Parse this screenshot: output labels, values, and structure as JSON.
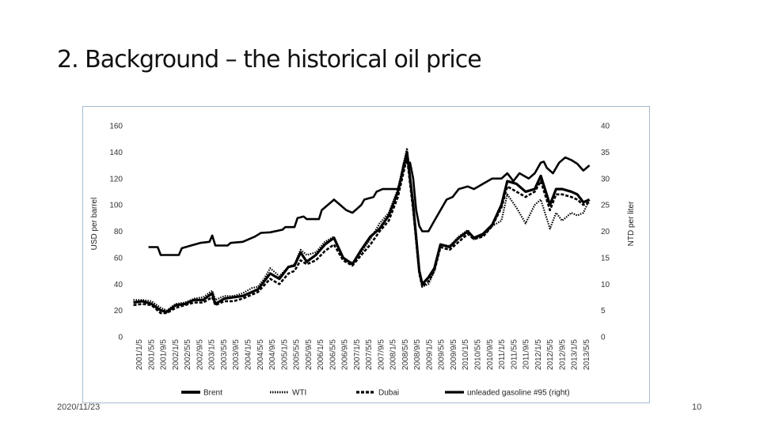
{
  "slide": {
    "title": "2. Background – the historical oil price",
    "date": "2020/11/23",
    "page_number": "10"
  },
  "chart_data": {
    "type": "line",
    "ylabel": "USD per barrel",
    "y2label": "NTD per liter",
    "ylim": [
      0,
      160
    ],
    "y_ticks": [
      0,
      20,
      40,
      60,
      80,
      100,
      120,
      140,
      160
    ],
    "y2lim": [
      0,
      40
    ],
    "y2_ticks": [
      0,
      5,
      10,
      15,
      20,
      25,
      30,
      35,
      40
    ],
    "x_tick_labels": [
      "2001/1/5",
      "2001/5/5",
      "2001/9/5",
      "2002/1/5",
      "2002/5/5",
      "2002/9/5",
      "2003/1/5",
      "2003/5/5",
      "2003/9/5",
      "2004/1/5",
      "2004/5/5",
      "2004/9/5",
      "2005/1/5",
      "2005/5/5",
      "2005/9/5",
      "2006/1/5",
      "2006/5/5",
      "2006/9/5",
      "2007/1/5",
      "2007/5/5",
      "2007/9/5",
      "2008/1/5",
      "2008/5/5",
      "2008/9/5",
      "2009/1/5",
      "2009/5/5",
      "2009/9/5",
      "2010/1/5",
      "2010/5/5",
      "2010/9/5",
      "2011/1/5",
      "2011/5/5",
      "2011/9/5",
      "2012/1/5",
      "2012/5/5",
      "2012/9/5",
      "2013/1/5",
      "2013/5/5"
    ],
    "grid": false,
    "legend_position": "bottom",
    "line_color": "#000000",
    "series": [
      {
        "name": "Brent",
        "axis": "left",
        "style": "solid",
        "x": [
          "2001-01",
          "2001-04",
          "2001-07",
          "2001-10",
          "2001-12",
          "2002-03",
          "2002-06",
          "2002-09",
          "2002-12",
          "2003-03",
          "2003-04",
          "2003-07",
          "2003-10",
          "2004-01",
          "2004-04",
          "2004-06",
          "2004-08",
          "2004-10",
          "2005-01",
          "2005-04",
          "2005-06",
          "2005-08",
          "2005-10",
          "2006-01",
          "2006-04",
          "2006-07",
          "2006-10",
          "2007-01",
          "2007-04",
          "2007-07",
          "2007-10",
          "2008-01",
          "2008-04",
          "2008-07",
          "2008-09",
          "2008-11",
          "2008-12",
          "2009-02",
          "2009-04",
          "2009-06",
          "2009-09",
          "2009-12",
          "2010-03",
          "2010-05",
          "2010-08",
          "2010-11",
          "2011-02",
          "2011-04",
          "2011-07",
          "2011-10",
          "2012-01",
          "2012-03",
          "2012-06",
          "2012-08",
          "2012-10",
          "2013-01",
          "2013-03",
          "2013-05",
          "2013-07"
        ],
        "y": [
          26,
          27,
          25,
          20,
          19,
          24,
          25,
          28,
          28,
          33,
          25,
          29,
          30,
          31,
          34,
          36,
          42,
          48,
          44,
          53,
          54,
          64,
          57,
          62,
          70,
          75,
          60,
          55,
          66,
          76,
          82,
          92,
          110,
          140,
          100,
          50,
          40,
          45,
          52,
          70,
          68,
          75,
          80,
          75,
          78,
          85,
          100,
          118,
          116,
          110,
          112,
          122,
          100,
          112,
          112,
          110,
          108,
          102,
          104
        ]
      },
      {
        "name": "WTI",
        "axis": "left",
        "style": "dotted",
        "x": [
          "2001-01",
          "2001-04",
          "2001-07",
          "2001-10",
          "2001-12",
          "2002-03",
          "2002-06",
          "2002-09",
          "2002-12",
          "2003-03",
          "2003-04",
          "2003-07",
          "2003-10",
          "2004-01",
          "2004-04",
          "2004-06",
          "2004-08",
          "2004-10",
          "2005-01",
          "2005-04",
          "2005-06",
          "2005-08",
          "2005-10",
          "2006-01",
          "2006-04",
          "2006-07",
          "2006-10",
          "2007-01",
          "2007-04",
          "2007-07",
          "2007-10",
          "2008-01",
          "2008-04",
          "2008-07",
          "2008-09",
          "2008-11",
          "2008-12",
          "2009-02",
          "2009-04",
          "2009-06",
          "2009-09",
          "2009-12",
          "2010-03",
          "2010-05",
          "2010-08",
          "2010-11",
          "2011-02",
          "2011-04",
          "2011-07",
          "2011-10",
          "2012-01",
          "2012-03",
          "2012-06",
          "2012-08",
          "2012-10",
          "2013-01",
          "2013-03",
          "2013-05",
          "2013-07"
        ],
        "y": [
          28,
          28,
          27,
          22,
          20,
          25,
          26,
          29,
          30,
          35,
          28,
          31,
          31,
          33,
          37,
          38,
          44,
          52,
          46,
          53,
          55,
          66,
          62,
          64,
          72,
          76,
          60,
          56,
          64,
          74,
          86,
          94,
          112,
          143,
          102,
          52,
          38,
          40,
          50,
          70,
          69,
          76,
          81,
          74,
          77,
          84,
          88,
          108,
          98,
          86,
          100,
          104,
          82,
          94,
          88,
          94,
          92,
          94,
          104
        ]
      },
      {
        "name": "Dubai",
        "axis": "left",
        "style": "dashed",
        "x": [
          "2001-01",
          "2001-04",
          "2001-07",
          "2001-10",
          "2001-12",
          "2002-03",
          "2002-06",
          "2002-09",
          "2002-12",
          "2003-03",
          "2003-04",
          "2003-07",
          "2003-10",
          "2004-01",
          "2004-04",
          "2004-06",
          "2004-08",
          "2004-10",
          "2005-01",
          "2005-04",
          "2005-06",
          "2005-08",
          "2005-10",
          "2006-01",
          "2006-04",
          "2006-07",
          "2006-10",
          "2007-01",
          "2007-04",
          "2007-07",
          "2007-10",
          "2008-01",
          "2008-04",
          "2008-07",
          "2008-09",
          "2008-11",
          "2008-12",
          "2009-02",
          "2009-04",
          "2009-06",
          "2009-09",
          "2009-12",
          "2010-03",
          "2010-05",
          "2010-08",
          "2010-11",
          "2011-02",
          "2011-04",
          "2011-07",
          "2011-10",
          "2012-01",
          "2012-03",
          "2012-06",
          "2012-08",
          "2012-10",
          "2013-01",
          "2013-03",
          "2013-05",
          "2013-07"
        ],
        "y": [
          24,
          25,
          24,
          18,
          18,
          22,
          24,
          26,
          26,
          30,
          24,
          27,
          27,
          29,
          32,
          34,
          39,
          44,
          40,
          48,
          50,
          58,
          55,
          58,
          65,
          70,
          58,
          54,
          62,
          70,
          80,
          88,
          106,
          136,
          96,
          48,
          38,
          42,
          50,
          68,
          66,
          72,
          78,
          74,
          76,
          84,
          98,
          114,
          110,
          106,
          110,
          118,
          96,
          108,
          108,
          106,
          104,
          100,
          102
        ]
      },
      {
        "name": "unleaded gasoline #95 (right)",
        "axis": "right",
        "style": "solid-thick",
        "x": [
          "2001-06",
          "2001-09",
          "2001-10",
          "2002-04",
          "2002-05",
          "2002-08",
          "2002-11",
          "2003-02",
          "2003-03",
          "2003-04",
          "2003-08",
          "2003-09",
          "2004-01",
          "2004-05",
          "2004-07",
          "2004-10",
          "2005-02",
          "2005-03",
          "2005-06",
          "2005-07",
          "2005-09",
          "2005-10",
          "2006-02",
          "2006-03",
          "2006-06",
          "2006-07",
          "2006-09",
          "2006-11",
          "2007-01",
          "2007-02",
          "2007-04",
          "2007-05",
          "2007-08",
          "2007-09",
          "2007-11",
          "2008-01",
          "2008-04",
          "2008-05",
          "2008-06",
          "2008-08",
          "2008-09",
          "2008-10",
          "2008-11",
          "2008-12",
          "2009-02",
          "2009-04",
          "2009-06",
          "2009-08",
          "2009-10",
          "2009-12",
          "2010-03",
          "2010-05",
          "2010-08",
          "2010-11",
          "2011-02",
          "2011-04",
          "2011-06",
          "2011-08",
          "2011-11",
          "2012-01",
          "2012-03",
          "2012-04",
          "2012-05",
          "2012-07",
          "2012-09",
          "2012-11",
          "2013-01",
          "2013-03",
          "2013-05",
          "2013-07"
        ],
        "y": [
          17,
          17,
          15.5,
          15.5,
          16.8,
          17.3,
          17.8,
          18,
          19.2,
          17.3,
          17.3,
          17.8,
          18,
          19,
          19.7,
          19.8,
          20.3,
          20.8,
          20.8,
          22.5,
          22.8,
          22.3,
          22.3,
          24,
          25.5,
          26,
          25,
          24,
          23.5,
          24,
          25,
          26,
          26.5,
          27.5,
          28,
          28,
          28,
          30,
          33,
          33,
          30,
          24,
          21,
          20,
          20,
          22,
          24,
          26,
          26.5,
          28,
          28.5,
          28,
          29,
          30,
          30,
          31,
          29.5,
          31,
          30,
          31,
          33,
          33.2,
          32,
          31,
          33,
          34,
          33.5,
          32.8,
          31.5,
          32.5
        ]
      }
    ]
  }
}
